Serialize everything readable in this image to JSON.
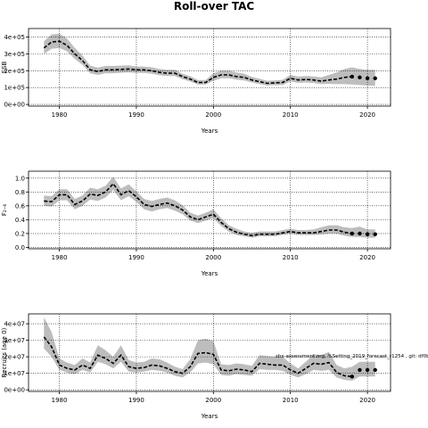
{
  "title": "Roll-over TAC",
  "chart_data": [
    {
      "type": "line",
      "panel": "ssb",
      "ylabel": "SSB",
      "xlabel": "Years",
      "xlim": [
        1976,
        2023
      ],
      "ylim": [
        -10000,
        450000
      ],
      "xticks": [
        1980,
        1990,
        2000,
        2010,
        2020
      ],
      "xtick_labels": [
        "1980",
        "1990",
        "2000",
        "2010",
        "2020"
      ],
      "yticks": [
        0,
        100000,
        200000,
        300000,
        400000
      ],
      "ytick_labels": [
        "0e+00",
        "1e+05",
        "2e+05",
        "3e+05",
        "4e+05"
      ],
      "grid": true,
      "series": [
        {
          "role": "estimate",
          "x": [
            1978,
            1979,
            1980,
            1981,
            1982,
            1983,
            1984,
            1985,
            1986,
            1987,
            1988,
            1989,
            1990,
            1991,
            1992,
            1993,
            1994,
            1995,
            1996,
            1997,
            1998,
            1999,
            2000,
            2001,
            2002,
            2003,
            2004,
            2005,
            2006,
            2007,
            2008,
            2009,
            2010,
            2011,
            2012,
            2013,
            2014,
            2015,
            2016,
            2017,
            2018
          ],
          "y": [
            335000,
            370000,
            375000,
            350000,
            300000,
            260000,
            205000,
            195000,
            205000,
            205000,
            208000,
            210000,
            205000,
            205000,
            200000,
            190000,
            185000,
            185000,
            165000,
            150000,
            130000,
            130000,
            160000,
            175000,
            175000,
            165000,
            160000,
            145000,
            135000,
            125000,
            128000,
            130000,
            155000,
            145000,
            148000,
            145000,
            138000,
            145000,
            150000,
            160000,
            165000
          ],
          "lower": [
            300000,
            330000,
            335000,
            315000,
            270000,
            235000,
            185000,
            175000,
            185000,
            185000,
            188000,
            190000,
            187000,
            187000,
            182000,
            173000,
            168000,
            168000,
            150000,
            136000,
            118000,
            118000,
            140000,
            155000,
            155000,
            147000,
            142000,
            130000,
            121000,
            112000,
            114000,
            116000,
            136000,
            128000,
            130000,
            127000,
            120000,
            122000,
            120000,
            120000,
            118000
          ],
          "upper": [
            375000,
            415000,
            420000,
            390000,
            335000,
            290000,
            230000,
            218000,
            228000,
            228000,
            230000,
            232000,
            225000,
            225000,
            220000,
            210000,
            205000,
            205000,
            182000,
            167000,
            145000,
            145000,
            185000,
            200000,
            200000,
            190000,
            182000,
            163000,
            152000,
            140000,
            143000,
            146000,
            175000,
            165000,
            168000,
            166000,
            160000,
            175000,
            190000,
            210000,
            220000
          ]
        },
        {
          "role": "forecast",
          "x": [
            2018,
            2019,
            2020,
            2021
          ],
          "y": [
            165000,
            160000,
            155000,
            155000
          ],
          "lower": [
            118000,
            115000,
            112000,
            110000
          ],
          "upper": [
            220000,
            210000,
            205000,
            205000
          ]
        }
      ]
    },
    {
      "type": "line",
      "panel": "f",
      "ylabel": "F₂₋₆",
      "xlabel": "Years",
      "xlim": [
        1976,
        2023
      ],
      "ylim": [
        -0.02,
        1.1
      ],
      "xticks": [
        1980,
        1990,
        2000,
        2010,
        2020
      ],
      "xtick_labels": [
        "1980",
        "1990",
        "2000",
        "2010",
        "2020"
      ],
      "yticks": [
        0,
        0.2,
        0.4,
        0.6,
        0.8,
        1.0
      ],
      "ytick_labels": [
        "0.0",
        "0.2",
        "0.4",
        "0.6",
        "0.8",
        "1.0"
      ],
      "grid": true,
      "series": [
        {
          "role": "estimate",
          "x": [
            1978,
            1979,
            1980,
            1981,
            1982,
            1983,
            1984,
            1985,
            1986,
            1987,
            1988,
            1989,
            1990,
            1991,
            1992,
            1993,
            1994,
            1995,
            1996,
            1997,
            1998,
            1999,
            2000,
            2001,
            2002,
            2003,
            2004,
            2005,
            2006,
            2007,
            2008,
            2009,
            2010,
            2011,
            2012,
            2013,
            2014,
            2015,
            2016,
            2017,
            2018
          ],
          "y": [
            0.67,
            0.66,
            0.76,
            0.76,
            0.62,
            0.67,
            0.77,
            0.75,
            0.8,
            0.92,
            0.76,
            0.82,
            0.73,
            0.62,
            0.59,
            0.62,
            0.64,
            0.6,
            0.54,
            0.44,
            0.4,
            0.44,
            0.48,
            0.36,
            0.27,
            0.22,
            0.19,
            0.17,
            0.19,
            0.19,
            0.19,
            0.21,
            0.23,
            0.21,
            0.21,
            0.21,
            0.23,
            0.25,
            0.25,
            0.22,
            0.2
          ],
          "lower": [
            0.6,
            0.59,
            0.68,
            0.68,
            0.55,
            0.6,
            0.69,
            0.67,
            0.72,
            0.83,
            0.68,
            0.74,
            0.66,
            0.55,
            0.52,
            0.55,
            0.57,
            0.53,
            0.48,
            0.39,
            0.35,
            0.39,
            0.42,
            0.31,
            0.23,
            0.18,
            0.16,
            0.14,
            0.16,
            0.16,
            0.16,
            0.18,
            0.2,
            0.18,
            0.18,
            0.18,
            0.19,
            0.2,
            0.2,
            0.17,
            0.15
          ],
          "upper": [
            0.75,
            0.74,
            0.84,
            0.84,
            0.7,
            0.75,
            0.86,
            0.84,
            0.89,
            1.02,
            0.85,
            0.91,
            0.81,
            0.7,
            0.67,
            0.7,
            0.72,
            0.68,
            0.61,
            0.5,
            0.46,
            0.5,
            0.55,
            0.42,
            0.32,
            0.27,
            0.23,
            0.21,
            0.23,
            0.23,
            0.23,
            0.25,
            0.27,
            0.25,
            0.25,
            0.26,
            0.29,
            0.32,
            0.32,
            0.29,
            0.28
          ]
        },
        {
          "role": "forecast",
          "x": [
            2018,
            2019,
            2020,
            2021
          ],
          "y": [
            0.2,
            0.2,
            0.19,
            0.19
          ],
          "lower": [
            0.15,
            0.15,
            0.14,
            0.14
          ],
          "upper": [
            0.28,
            0.3,
            0.26,
            0.26
          ]
        }
      ]
    },
    {
      "type": "line",
      "panel": "recruits",
      "ylabel": "Recruits (age 0)",
      "xlabel": "Years",
      "xlim": [
        1976,
        2023
      ],
      "ylim": [
        -1000000,
        46000000
      ],
      "xticks": [
        1980,
        1990,
        2000,
        2010,
        2020
      ],
      "xtick_labels": [
        "1980",
        "1990",
        "2000",
        "2010",
        "2020"
      ],
      "yticks": [
        0,
        10000000,
        20000000,
        30000000,
        40000000
      ],
      "ytick_labels": [
        "0e+00",
        "1e+07",
        "2e+07",
        "3e+07",
        "4e+07"
      ],
      "grid": true,
      "annotation": "sbx-assessment.org, %Setting_2019_forecast_r1254 , git: df0b",
      "series": [
        {
          "role": "estimate",
          "x": [
            1978,
            1979,
            1980,
            1981,
            1982,
            1983,
            1984,
            1985,
            1986,
            1987,
            1988,
            1989,
            1990,
            1991,
            1992,
            1993,
            1994,
            1995,
            1996,
            1997,
            1998,
            1999,
            2000,
            2001,
            2002,
            2003,
            2004,
            2005,
            2006,
            2007,
            2008,
            2009,
            2010,
            2011,
            2012,
            2013,
            2014,
            2015,
            2016,
            2017,
            2018
          ],
          "y": [
            32000000,
            26000000,
            15000000,
            13000000,
            12000000,
            15000000,
            13000000,
            21000000,
            19000000,
            16000000,
            21000000,
            14000000,
            13000000,
            13500000,
            15000000,
            14500000,
            13000000,
            11000000,
            10000000,
            14000000,
            22000000,
            22500000,
            21500000,
            12000000,
            11500000,
            12500000,
            12000000,
            11000000,
            16000000,
            15500000,
            15000000,
            15000000,
            12000000,
            10000000,
            13000000,
            16000000,
            15500000,
            16500000,
            10500000,
            8500000,
            8000000
          ],
          "lower": [
            25000000,
            20000000,
            12000000,
            10500000,
            9500000,
            12000000,
            10500000,
            17000000,
            15500000,
            13000000,
            17000000,
            11000000,
            10500000,
            11000000,
            12000000,
            11500000,
            10500000,
            8500000,
            7500000,
            10500000,
            16000000,
            16500000,
            15500000,
            9000000,
            8500000,
            9500000,
            9000000,
            8500000,
            12500000,
            12000000,
            12000000,
            11500000,
            9000000,
            7500000,
            9500000,
            12000000,
            11500000,
            12000000,
            7500000,
            6000000,
            5500000
          ],
          "upper": [
            44000000,
            35000000,
            19000000,
            16500000,
            15000000,
            19000000,
            16500000,
            27000000,
            24000000,
            20000000,
            27000000,
            18000000,
            16500000,
            17000000,
            19000000,
            18500000,
            16500000,
            14000000,
            12500000,
            18500000,
            30000000,
            31000000,
            29500000,
            15500000,
            15000000,
            16000000,
            15500000,
            14500000,
            21000000,
            20500000,
            20000000,
            20000000,
            16000000,
            13000000,
            17000000,
            21500000,
            21000000,
            23000000,
            15000000,
            13000000,
            14000000
          ]
        },
        {
          "role": "forecast",
          "x": [
            2018,
            2019,
            2020,
            2021
          ],
          "y": [
            8000000,
            12000000,
            12000000,
            12000000
          ],
          "lower": [
            5500000,
            8000000,
            8000000,
            8000000
          ],
          "upper": [
            14000000,
            17000000,
            17000000,
            17000000
          ]
        }
      ]
    }
  ]
}
